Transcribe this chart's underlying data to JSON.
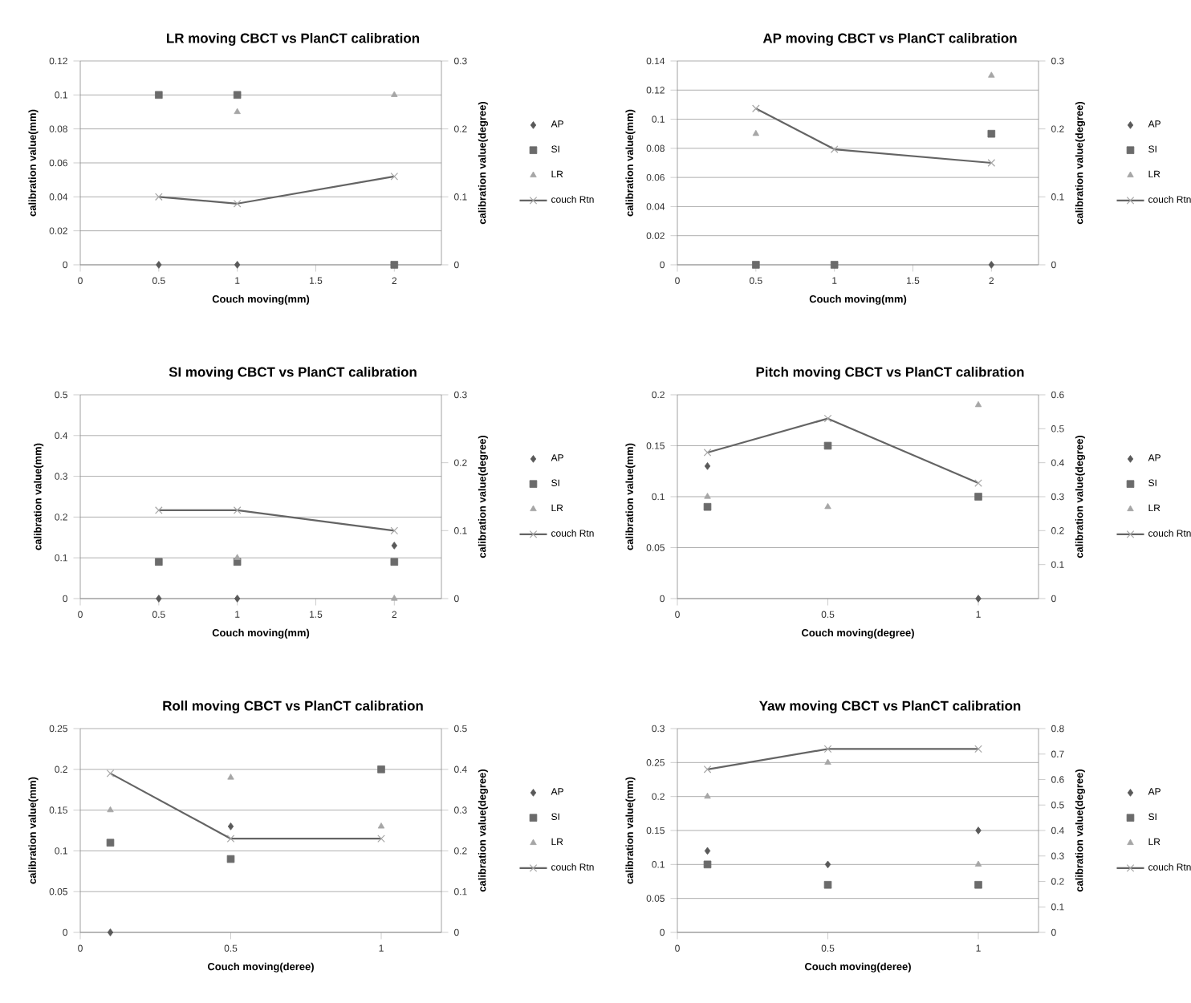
{
  "chart_data": [
    {
      "type": "scatter",
      "title": "LR moving CBCT vs PlanCT calibration",
      "xlabel": "Couch moving(mm)",
      "ylabel": "calibration value(mm)",
      "y2label": "calibration value(degree)",
      "x": [
        0.5,
        1,
        2
      ],
      "xlim": [
        0,
        2.3
      ],
      "xticks": [
        0,
        0.5,
        1,
        1.5,
        2
      ],
      "ylim": [
        0,
        0.12
      ],
      "yticks": [
        0,
        0.02,
        0.04,
        0.06,
        0.08,
        0.1,
        0.12
      ],
      "y2lim": [
        0,
        0.3
      ],
      "y2ticks": [
        0,
        0.1,
        0.2,
        0.3
      ],
      "grid": "y",
      "legend": "right",
      "series": [
        {
          "name": "AP",
          "color": "#595959",
          "marker": "diamond",
          "values": [
            0,
            0,
            null
          ]
        },
        {
          "name": "SI",
          "color": "#6b6b6b",
          "marker": "square",
          "values": [
            0.1,
            0.1,
            0
          ]
        },
        {
          "name": "LR",
          "color": "#a6a6a6",
          "marker": "triangle",
          "values": [
            null,
            0.09,
            0.1
          ]
        },
        {
          "name": "couch Rtn",
          "type": "line",
          "axis": "y2",
          "color": "#646464",
          "marker": "cross",
          "values": [
            0.1,
            0.09,
            0.13
          ]
        }
      ]
    },
    {
      "type": "scatter",
      "title": "AP moving CBCT vs PlanCT calibration",
      "xlabel": "Couch moving(mm)",
      "ylabel": "calibration value(mm)",
      "y2label": "calibration value(degree)",
      "x": [
        0.5,
        1,
        2
      ],
      "xlim": [
        0,
        2.3
      ],
      "xticks": [
        0,
        0.5,
        1,
        1.5,
        2
      ],
      "ylim": [
        0,
        0.14
      ],
      "yticks": [
        0,
        0.02,
        0.04,
        0.06,
        0.08,
        0.1,
        0.12,
        0.14
      ],
      "y2lim": [
        0,
        0.3
      ],
      "y2ticks": [
        0,
        0.1,
        0.2,
        0.3
      ],
      "grid": "y",
      "legend": "right",
      "series": [
        {
          "name": "AP",
          "color": "#595959",
          "marker": "diamond",
          "values": [
            null,
            null,
            0
          ]
        },
        {
          "name": "SI",
          "color": "#6b6b6b",
          "marker": "square",
          "values": [
            0,
            0,
            0.09
          ]
        },
        {
          "name": "LR",
          "color": "#a6a6a6",
          "marker": "triangle",
          "values": [
            0.09,
            null,
            0.13
          ]
        },
        {
          "name": "couch Rtn",
          "type": "line",
          "axis": "y2",
          "color": "#646464",
          "marker": "cross",
          "values": [
            0.23,
            0.17,
            0.15
          ]
        }
      ]
    },
    {
      "type": "scatter",
      "title": "SI moving CBCT vs PlanCT calibration",
      "xlabel": "Couch moving(mm)",
      "ylabel": "calibration value(mm)",
      "y2label": "calibration value(degree)",
      "x": [
        0.5,
        1,
        2
      ],
      "xlim": [
        0,
        2.3
      ],
      "xticks": [
        0,
        0.5,
        1,
        1.5,
        2
      ],
      "ylim": [
        0,
        0.5
      ],
      "yticks": [
        0,
        0.1,
        0.2,
        0.3,
        0.4,
        0.5
      ],
      "y2lim": [
        0,
        0.3
      ],
      "y2ticks": [
        0,
        0.1,
        0.2,
        0.3
      ],
      "grid": "y",
      "legend": "right",
      "series": [
        {
          "name": "AP",
          "color": "#595959",
          "marker": "diamond",
          "values": [
            0,
            0,
            0.13
          ]
        },
        {
          "name": "SI",
          "color": "#6b6b6b",
          "marker": "square",
          "values": [
            0.09,
            0.09,
            0.09
          ]
        },
        {
          "name": "LR",
          "color": "#a6a6a6",
          "marker": "triangle",
          "values": [
            null,
            0.1,
            0
          ]
        },
        {
          "name": "couch Rtn",
          "type": "line",
          "axis": "y2",
          "color": "#646464",
          "marker": "cross",
          "values": [
            0.13,
            0.13,
            0.1
          ]
        }
      ]
    },
    {
      "type": "scatter",
      "title": "Pitch moving CBCT vs PlanCT calibration",
      "xlabel": "Couch moving(degree)",
      "ylabel": "calibration value(mm)",
      "y2label": "calibration value(degree)",
      "x": [
        0.1,
        0.5,
        1
      ],
      "xlim": [
        0,
        1.2
      ],
      "xticks": [
        0,
        0.5,
        1
      ],
      "ylim": [
        0,
        0.2
      ],
      "yticks": [
        0,
        0.05,
        0.1,
        0.15,
        0.2
      ],
      "y2lim": [
        0,
        0.6
      ],
      "y2ticks": [
        0,
        0.1,
        0.2,
        0.3,
        0.4,
        0.5,
        0.6
      ],
      "grid": "y",
      "legend": "right",
      "series": [
        {
          "name": "AP",
          "color": "#595959",
          "marker": "diamond",
          "values": [
            0.13,
            null,
            0
          ]
        },
        {
          "name": "SI",
          "color": "#6b6b6b",
          "marker": "square",
          "values": [
            0.09,
            0.15,
            0.1
          ]
        },
        {
          "name": "LR",
          "color": "#a6a6a6",
          "marker": "triangle",
          "values": [
            0.1,
            0.09,
            0.19
          ]
        },
        {
          "name": "couch Rtn",
          "type": "line",
          "axis": "y2",
          "color": "#646464",
          "marker": "cross",
          "values": [
            0.43,
            0.53,
            0.34
          ]
        }
      ]
    },
    {
      "type": "scatter",
      "title": "Roll moving  CBCT vs PlanCT calibration",
      "xlabel": "Couch moving(deree)",
      "ylabel": "calibration value(mm)",
      "y2label": "calibration value(degree)",
      "x": [
        0.1,
        0.5,
        1
      ],
      "xlim": [
        0,
        1.2
      ],
      "xticks": [
        0,
        0.5,
        1
      ],
      "ylim": [
        0,
        0.25
      ],
      "yticks": [
        0,
        0.05,
        0.1,
        0.15,
        0.2,
        0.25
      ],
      "y2lim": [
        0,
        0.5
      ],
      "y2ticks": [
        0,
        0.1,
        0.2,
        0.3,
        0.4,
        0.5
      ],
      "grid": "y",
      "legend": "right",
      "series": [
        {
          "name": "AP",
          "color": "#595959",
          "marker": "diamond",
          "values": [
            0,
            0.13,
            null
          ]
        },
        {
          "name": "SI",
          "color": "#6b6b6b",
          "marker": "square",
          "values": [
            0.11,
            0.09,
            0.2
          ]
        },
        {
          "name": "LR",
          "color": "#a6a6a6",
          "marker": "triangle",
          "values": [
            0.15,
            0.19,
            0.13
          ]
        },
        {
          "name": "couch Rtn",
          "type": "line",
          "axis": "y2",
          "color": "#646464",
          "marker": "cross",
          "values": [
            0.39,
            0.23,
            0.23
          ]
        }
      ]
    },
    {
      "type": "scatter",
      "title": "Yaw moving  CBCT vs PlanCT calibration",
      "xlabel": "Couch moving(deree)",
      "ylabel": "calibration value(mm)",
      "y2label": "calibration value(degree)",
      "x": [
        0.1,
        0.5,
        1
      ],
      "xlim": [
        0,
        1.2
      ],
      "xticks": [
        0,
        0.5,
        1
      ],
      "ylim": [
        0,
        0.3
      ],
      "yticks": [
        0,
        0.05,
        0.1,
        0.15,
        0.2,
        0.25,
        0.3
      ],
      "y2lim": [
        0,
        0.8
      ],
      "y2ticks": [
        0,
        0.1,
        0.2,
        0.3,
        0.4,
        0.5,
        0.6,
        0.7,
        0.8
      ],
      "grid": "y",
      "legend": "right",
      "series": [
        {
          "name": "AP",
          "color": "#595959",
          "marker": "diamond",
          "values": [
            0.12,
            0.1,
            0.15
          ]
        },
        {
          "name": "SI",
          "color": "#6b6b6b",
          "marker": "square",
          "values": [
            0.1,
            0.07,
            0.07
          ]
        },
        {
          "name": "LR",
          "color": "#a6a6a6",
          "marker": "triangle",
          "values": [
            0.2,
            0.25,
            0.1
          ]
        },
        {
          "name": "couch Rtn",
          "type": "line",
          "axis": "y2",
          "color": "#646464",
          "marker": "cross",
          "values": [
            0.64,
            0.72,
            0.72
          ]
        }
      ]
    }
  ]
}
